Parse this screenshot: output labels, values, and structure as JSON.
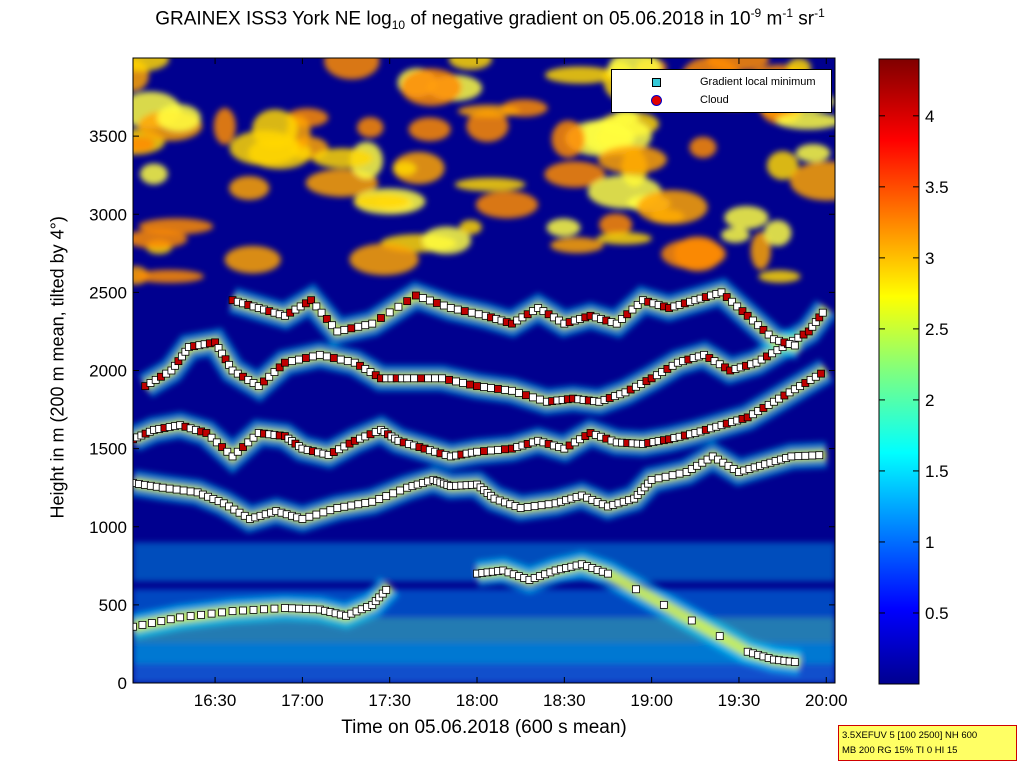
{
  "title_prefix": "GRAINEX ISS3 York NE log",
  "title_sub": "10",
  "title_mid": " of negative gradient on 05.06.2018 in 10",
  "title_sup1": "-9",
  "title_mid2": " m",
  "title_sup2": "-1",
  "title_mid3": " sr",
  "title_sup3": "-1",
  "legend": {
    "item1": "Gradient local minimum",
    "item2": "Cloud"
  },
  "info": {
    "line1": "3.5XEFUV 5 [100 2500] NH 600",
    "line2": "MB 200 RG 15% TI 0 HI 15"
  },
  "colors": {
    "gradient_minimum_marker": "#35c9d8",
    "cloud_fill": "#e00000",
    "cloud_edge": "#0000c8",
    "infobox_bg": "#ffff64",
    "infobox_border": "#d00000"
  },
  "chart_data": {
    "type": "heatmap",
    "xlabel": "Time on 05.06.2018 (600 s mean)",
    "ylabel": "Height in m (200 m mean, tilted by 4°)",
    "x_ticks": [
      "16:30",
      "17:00",
      "17:30",
      "18:00",
      "18:30",
      "19:00",
      "19:30",
      "20:00"
    ],
    "x_tick_hours": [
      16.5,
      17.0,
      17.5,
      18.0,
      18.5,
      19.0,
      19.5,
      20.0
    ],
    "x_range_hours": [
      16.03,
      20.05
    ],
    "y_ticks": [
      0,
      500,
      1000,
      1500,
      2000,
      2500,
      3000,
      3500
    ],
    "y_range": [
      0,
      4000
    ],
    "colorbar_ticks": [
      0.5,
      1,
      1.5,
      2,
      2.5,
      3,
      3.5,
      4
    ],
    "colorbar_range": [
      0,
      4.4
    ],
    "colormap": "jet",
    "grid": false,
    "legend_position": "top-right",
    "layers_description_values": {
      "gradient_minimum_traces": [
        {
          "name": "low",
          "points": [
            [
              16.03,
              360
            ],
            [
              16.3,
              420
            ],
            [
              16.6,
              460
            ],
            [
              16.9,
              480
            ],
            [
              17.1,
              470
            ],
            [
              17.25,
              430
            ],
            [
              17.4,
              500
            ],
            [
              17.5,
              620
            ]
          ]
        },
        {
          "name": "layer-1000",
          "points": [
            [
              16.03,
              1280
            ],
            [
              16.2,
              1250
            ],
            [
              16.4,
              1220
            ],
            [
              16.55,
              1150
            ],
            [
              16.7,
              1050
            ],
            [
              16.85,
              1100
            ],
            [
              17.0,
              1050
            ],
            [
              17.2,
              1120
            ],
            [
              17.4,
              1160
            ],
            [
              17.6,
              1250
            ],
            [
              17.75,
              1300
            ],
            [
              17.85,
              1260
            ],
            [
              18.0,
              1270
            ],
            [
              18.1,
              1180
            ],
            [
              18.25,
              1120
            ],
            [
              18.45,
              1150
            ],
            [
              18.6,
              1200
            ],
            [
              18.75,
              1130
            ],
            [
              18.9,
              1180
            ],
            [
              19.0,
              1300
            ],
            [
              19.2,
              1350
            ],
            [
              19.35,
              1450
            ],
            [
              19.5,
              1350
            ],
            [
              19.65,
              1400
            ],
            [
              19.8,
              1450
            ],
            [
              20.0,
              1460
            ]
          ]
        },
        {
          "name": "layer-1500",
          "points": [
            [
              16.03,
              1560
            ],
            [
              16.15,
              1620
            ],
            [
              16.3,
              1650
            ],
            [
              16.45,
              1600
            ],
            [
              16.6,
              1450
            ],
            [
              16.75,
              1600
            ],
            [
              16.9,
              1580
            ],
            [
              17.0,
              1500
            ],
            [
              17.15,
              1460
            ],
            [
              17.3,
              1550
            ],
            [
              17.45,
              1620
            ],
            [
              17.55,
              1550
            ],
            [
              17.7,
              1500
            ],
            [
              17.85,
              1450
            ],
            [
              18.0,
              1480
            ],
            [
              18.2,
              1500
            ],
            [
              18.35,
              1550
            ],
            [
              18.5,
              1500
            ],
            [
              18.65,
              1600
            ],
            [
              18.8,
              1540
            ],
            [
              18.95,
              1530
            ],
            [
              19.1,
              1560
            ],
            [
              19.25,
              1600
            ],
            [
              19.4,
              1650
            ],
            [
              19.55,
              1700
            ],
            [
              19.7,
              1800
            ],
            [
              19.85,
              1900
            ],
            [
              20.0,
              2000
            ]
          ]
        },
        {
          "name": "layer-2000",
          "points": [
            [
              16.1,
              1900
            ],
            [
              16.25,
              2000
            ],
            [
              16.35,
              2150
            ],
            [
              16.5,
              2180
            ],
            [
              16.6,
              2000
            ],
            [
              16.75,
              1900
            ],
            [
              16.9,
              2050
            ],
            [
              17.1,
              2100
            ],
            [
              17.3,
              2050
            ],
            [
              17.45,
              1950
            ],
            [
              17.6,
              1950
            ],
            [
              17.8,
              1950
            ],
            [
              18.0,
              1900
            ],
            [
              18.2,
              1870
            ],
            [
              18.4,
              1800
            ],
            [
              18.55,
              1820
            ],
            [
              18.7,
              1800
            ],
            [
              18.85,
              1860
            ],
            [
              19.0,
              1950
            ],
            [
              19.15,
              2050
            ],
            [
              19.3,
              2100
            ],
            [
              19.45,
              2000
            ],
            [
              19.6,
              2050
            ],
            [
              19.75,
              2150
            ],
            [
              19.9,
              2250
            ],
            [
              20.0,
              2400
            ]
          ]
        },
        {
          "name": "layer-2400",
          "points": [
            [
              16.6,
              2450
            ],
            [
              16.75,
              2400
            ],
            [
              16.9,
              2350
            ],
            [
              17.05,
              2450
            ],
            [
              17.2,
              2250
            ],
            [
              17.4,
              2300
            ],
            [
              17.65,
              2480
            ],
            [
              17.85,
              2400
            ],
            [
              18.05,
              2350
            ],
            [
              18.2,
              2300
            ],
            [
              18.35,
              2400
            ],
            [
              18.5,
              2300
            ],
            [
              18.65,
              2350
            ],
            [
              18.8,
              2300
            ],
            [
              18.95,
              2450
            ],
            [
              19.1,
              2400
            ],
            [
              19.25,
              2450
            ],
            [
              19.4,
              2500
            ],
            [
              19.55,
              2350
            ],
            [
              19.7,
              2200
            ],
            [
              19.85,
              2150
            ]
          ]
        },
        {
          "name": "layer-700",
          "points": [
            [
              18.0,
              700
            ],
            [
              18.15,
              720
            ],
            [
              18.3,
              660
            ],
            [
              18.45,
              720
            ],
            [
              18.6,
              760
            ],
            [
              18.75,
              700
            ],
            [
              19.55,
              200
            ],
            [
              19.7,
              150
            ],
            [
              19.85,
              130
            ]
          ]
        }
      ]
    }
  }
}
